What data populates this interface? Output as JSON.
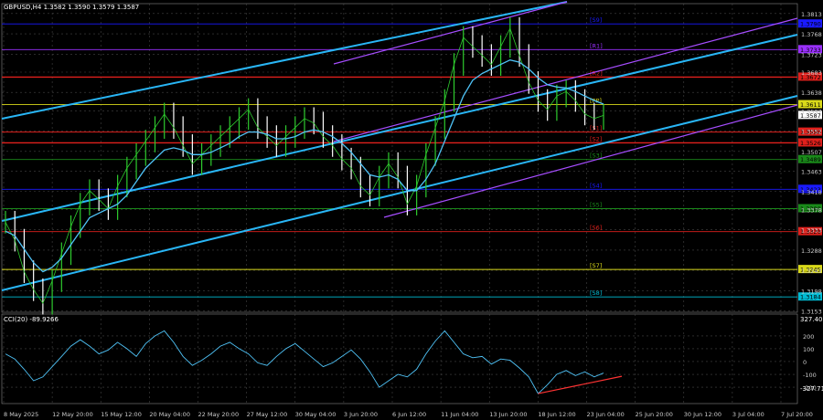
{
  "header": {
    "symbol_title": "GBPUSD,H4  1.3582 1.3590 1.3579 1.3587"
  },
  "indicator": {
    "title": "CCI(20) -89.9266",
    "scale_top": "327.4063",
    "scale_bottom": "-327.719"
  },
  "chart_data": {
    "type": "line",
    "price_axis": {
      "ylim": [
        1.315,
        1.3835
      ],
      "ticks": [
        "1.3813",
        "1.3768",
        "1.3723",
        "1.3683",
        "1.3638",
        "1.3597",
        "1.3552",
        "1.3507",
        "1.3463",
        "1.3418",
        "1.3378",
        "1.3333",
        "1.3288",
        "1.3243",
        "1.3198",
        "1.3153"
      ]
    },
    "x_ticks": [
      "8 May 2025",
      "12 May 20:00",
      "15 May 12:00",
      "20 May 04:00",
      "22 May 20:00",
      "27 May 12:00",
      "30 May 04:00",
      "3 Jun 20:00",
      "6 Jun 12:00",
      "11 Jun 04:00",
      "13 Jun 20:00",
      "18 Jun 12:00",
      "23 Jun 04:00",
      "25 Jun 20:00",
      "30 Jun 12:00",
      "3 Jul 04:00",
      "7 Jul 20:00"
    ],
    "current_price": 1.3587,
    "levels": [
      {
        "label": "R1",
        "price_label": "1.3733",
        "value": 1.3733,
        "color": "#9b30ff"
      },
      {
        "label": "R2",
        "price_label": "1.3672",
        "value": 1.3672,
        "color": "#e0201c"
      },
      {
        "label": "PP",
        "price_label": "1.3611",
        "value": 1.3611,
        "color": "#d9d91a"
      },
      {
        "label": "S1",
        "price_label": "1.3550",
        "value": 1.355,
        "color": "#e0201c"
      },
      {
        "label": "S2",
        "price_label": "1.3526",
        "value": 1.3526,
        "color": "#e0201c"
      },
      {
        "label": "S3",
        "price_label": "1.3489",
        "value": 1.3489,
        "color": "#1a8a1a"
      },
      {
        "label": "S4",
        "price_label": "1.3423",
        "value": 1.3423,
        "color": "#1a1aff"
      },
      {
        "label": "S5",
        "price_label": "1.3380",
        "value": 1.338,
        "color": "#1a8a1a"
      },
      {
        "label": "S6",
        "price_label": "1.3329",
        "value": 1.3329,
        "color": "#e0201c"
      },
      {
        "label": "S7",
        "price_label": "1.3245",
        "value": 1.3245,
        "color": "#d9d91a"
      },
      {
        "label": "S8",
        "price_label": "1.3184",
        "value": 1.3184,
        "color": "#00bcd4"
      },
      {
        "label": "S9",
        "price_label": "1.3790",
        "value": 1.379,
        "color": "#1a1aff"
      }
    ],
    "price_series": [
      1.335,
      1.331,
      1.324,
      1.32,
      1.317,
      1.322,
      1.328,
      1.334,
      1.339,
      1.342,
      1.34,
      1.338,
      1.343,
      1.347,
      1.35,
      1.353,
      1.356,
      1.359,
      1.356,
      1.352,
      1.348,
      1.35,
      1.352,
      1.354,
      1.356,
      1.358,
      1.36,
      1.356,
      1.354,
      1.352,
      1.354,
      1.356,
      1.358,
      1.357,
      1.354,
      1.352,
      1.349,
      1.347,
      1.343,
      1.341,
      1.345,
      1.348,
      1.345,
      1.339,
      1.343,
      1.35,
      1.356,
      1.362,
      1.37,
      1.376,
      1.374,
      1.372,
      1.37,
      1.374,
      1.378,
      1.372,
      1.366,
      1.362,
      1.36,
      1.363,
      1.364,
      1.362,
      1.359,
      1.358,
      1.3587
    ],
    "ma_series": [
      1.333,
      1.332,
      1.329,
      1.326,
      1.324,
      1.325,
      1.327,
      1.33,
      1.333,
      1.336,
      1.337,
      1.338,
      1.339,
      1.341,
      1.344,
      1.347,
      1.349,
      1.351,
      1.3515,
      1.351,
      1.35,
      1.35,
      1.3505,
      1.3515,
      1.3525,
      1.354,
      1.355,
      1.355,
      1.3545,
      1.3535,
      1.3535,
      1.354,
      1.355,
      1.3555,
      1.355,
      1.354,
      1.3525,
      1.3505,
      1.348,
      1.3455,
      1.345,
      1.3455,
      1.3445,
      1.342,
      1.342,
      1.3445,
      1.348,
      1.353,
      1.358,
      1.363,
      1.3665,
      1.368,
      1.369,
      1.37,
      1.371,
      1.3705,
      1.369,
      1.367,
      1.3655,
      1.365,
      1.3648,
      1.364,
      1.363,
      1.362,
      1.3612
    ],
    "cci_axis": {
      "ylim": [
        -327.719,
        327.4063
      ],
      "ticks": [
        "200",
        "100",
        "0",
        "-100",
        "-200"
      ]
    },
    "cci_series": [
      60,
      20,
      -60,
      -150,
      -120,
      -40,
      40,
      120,
      170,
      120,
      60,
      90,
      150,
      100,
      40,
      140,
      200,
      240,
      150,
      40,
      -30,
      10,
      60,
      120,
      150,
      100,
      60,
      -10,
      -30,
      40,
      100,
      140,
      80,
      20,
      -40,
      -10,
      40,
      90,
      20,
      -80,
      -200,
      -150,
      -100,
      -120,
      -60,
      60,
      160,
      240,
      150,
      60,
      30,
      40,
      -20,
      20,
      10,
      -50,
      -120,
      -250,
      -180,
      -100,
      -70,
      -110,
      -80,
      -120,
      -90
    ]
  }
}
